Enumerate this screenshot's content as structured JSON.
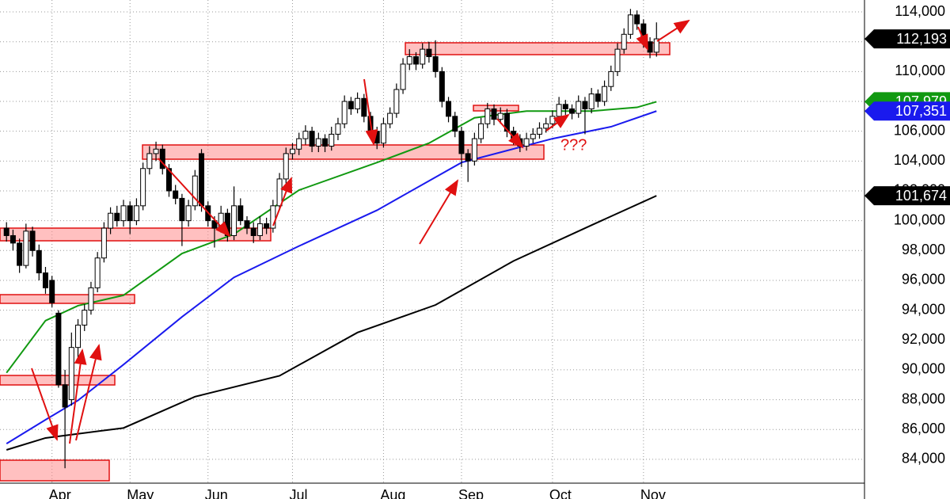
{
  "chart_data": {
    "type": "candlestick",
    "xlim": [
      -1,
      132
    ],
    "ylim": [
      82400,
      114800
    ],
    "xticks": [
      {
        "value": 7,
        "label": "Apr"
      },
      {
        "value": 19,
        "label": "May"
      },
      {
        "value": 31,
        "label": "Jun"
      },
      {
        "value": 44,
        "label": "Jul"
      },
      {
        "value": 58,
        "label": "Aug"
      },
      {
        "value": 70,
        "label": "Sep"
      },
      {
        "value": 84,
        "label": "Oct"
      },
      {
        "value": 98,
        "label": "Nov"
      }
    ],
    "yticks": [
      {
        "value": 84000,
        "label": "84,000"
      },
      {
        "value": 86000,
        "label": "86,000"
      },
      {
        "value": 88000,
        "label": "88,000"
      },
      {
        "value": 90000,
        "label": "90,000"
      },
      {
        "value": 92000,
        "label": "92,000"
      },
      {
        "value": 94000,
        "label": "94,000"
      },
      {
        "value": 96000,
        "label": "96,000"
      },
      {
        "value": 98000,
        "label": "98,000"
      },
      {
        "value": 100000,
        "label": "100,000"
      },
      {
        "value": 102000,
        "label": "102,000"
      },
      {
        "value": 104000,
        "label": "104,000"
      },
      {
        "value": 106000,
        "label": "106,000"
      },
      {
        "value": 108000,
        "label": "108,000"
      },
      {
        "value": 110000,
        "label": "110,000"
      },
      {
        "value": 112000,
        "label": "112,000"
      },
      {
        "value": 114000,
        "label": "114,000"
      }
    ],
    "grid": true,
    "up_color": "#ffffff",
    "down_color": "#000000",
    "ohlc": [
      [
        99500,
        99900,
        98600,
        99000
      ],
      [
        99000,
        99400,
        98000,
        98500
      ],
      [
        98500,
        98800,
        96500,
        97000
      ],
      [
        97000,
        99800,
        96800,
        99300
      ],
      [
        99300,
        99600,
        97600,
        98000
      ],
      [
        98000,
        98400,
        96000,
        96500
      ],
      [
        96500,
        96900,
        95100,
        95500
      ],
      [
        96000,
        96300,
        94200,
        94500
      ],
      [
        93800,
        94000,
        88800,
        89000
      ],
      [
        89000,
        90000,
        83400,
        87500
      ],
      [
        88000,
        92500,
        87600,
        91500
      ],
      [
        91500,
        93400,
        90800,
        93000
      ],
      [
        93000,
        94400,
        92600,
        94000
      ],
      [
        94000,
        95900,
        93700,
        95500
      ],
      [
        95500,
        97900,
        95200,
        97500
      ],
      [
        97500,
        99900,
        97200,
        99500
      ],
      [
        99500,
        100900,
        99100,
        100500
      ],
      [
        100500,
        101000,
        99600,
        100000
      ],
      [
        100000,
        101400,
        99600,
        101000
      ],
      [
        101000,
        101300,
        99100,
        100000
      ],
      [
        100000,
        101500,
        99700,
        101000
      ],
      [
        101000,
        103900,
        100700,
        103500
      ],
      [
        103500,
        105000,
        103100,
        104500
      ],
      [
        104500,
        105300,
        104000,
        104800
      ],
      [
        104800,
        105100,
        103100,
        103500
      ],
      [
        103500,
        103800,
        101600,
        102000
      ],
      [
        102000,
        102400,
        101100,
        101500
      ],
      [
        101500,
        101800,
        98300,
        100000
      ],
      [
        100000,
        101400,
        99600,
        101000
      ],
      [
        101000,
        103400,
        100700,
        103000
      ],
      [
        104500,
        104800,
        100600,
        101000
      ],
      [
        101000,
        101300,
        99600,
        100000
      ],
      [
        100000,
        100300,
        98200,
        99500
      ],
      [
        99500,
        101000,
        99200,
        100500
      ],
      [
        100500,
        100800,
        98600,
        99000
      ],
      [
        99000,
        102300,
        98700,
        101000
      ],
      [
        101000,
        101500,
        99700,
        100000
      ],
      [
        100000,
        100300,
        99100,
        99500
      ],
      [
        99500,
        99900,
        98500,
        99000
      ],
      [
        99000,
        100300,
        98700,
        99800
      ],
      [
        99800,
        100200,
        99100,
        99500
      ],
      [
        99500,
        101400,
        99200,
        101000
      ],
      [
        101000,
        103200,
        100700,
        102800
      ],
      [
        102800,
        104900,
        102500,
        104500
      ],
      [
        104500,
        105200,
        104100,
        104800
      ],
      [
        104800,
        105900,
        104400,
        105500
      ],
      [
        105500,
        106400,
        105100,
        106000
      ],
      [
        106000,
        106300,
        104600,
        105000
      ],
      [
        105000,
        105900,
        104600,
        105500
      ],
      [
        105500,
        105800,
        104600,
        105000
      ],
      [
        105000,
        106300,
        104700,
        105800
      ],
      [
        105800,
        106900,
        105400,
        106500
      ],
      [
        106500,
        108400,
        106200,
        108000
      ],
      [
        108000,
        108300,
        107100,
        107500
      ],
      [
        107500,
        108600,
        107200,
        108200
      ],
      [
        108200,
        108500,
        106600,
        107000
      ],
      [
        107000,
        107300,
        105600,
        106000
      ],
      [
        106000,
        106300,
        104800,
        105200
      ],
      [
        105200,
        106900,
        104900,
        106500
      ],
      [
        106500,
        107600,
        106200,
        107200
      ],
      [
        107200,
        109200,
        106900,
        108800
      ],
      [
        108800,
        110900,
        108500,
        110500
      ],
      [
        110500,
        111500,
        110100,
        111000
      ],
      [
        111000,
        111300,
        110100,
        110500
      ],
      [
        110500,
        111900,
        110200,
        111500
      ],
      [
        111500,
        112000,
        110600,
        111000
      ],
      [
        111000,
        112100,
        109600,
        110000
      ],
      [
        110000,
        110300,
        107600,
        108000
      ],
      [
        108000,
        108300,
        106600,
        107000
      ],
      [
        107000,
        107300,
        105600,
        106000
      ],
      [
        106000,
        106300,
        103600,
        104500
      ],
      [
        104500,
        104800,
        102600,
        104000
      ],
      [
        104000,
        105900,
        103700,
        105500
      ],
      [
        105500,
        106900,
        105200,
        106500
      ],
      [
        106500,
        107900,
        106200,
        107500
      ],
      [
        107500,
        107800,
        106400,
        106800
      ],
      [
        106800,
        107600,
        106500,
        107200
      ],
      [
        107200,
        107500,
        105600,
        106000
      ],
      [
        106000,
        106300,
        105100,
        105500
      ],
      [
        105500,
        105800,
        104600,
        105000
      ],
      [
        105000,
        105900,
        104700,
        105500
      ],
      [
        105500,
        106200,
        105200,
        105800
      ],
      [
        105800,
        106600,
        105500,
        106200
      ],
      [
        106200,
        106900,
        105900,
        106500
      ],
      [
        106500,
        107400,
        106200,
        107000
      ],
      [
        107000,
        108300,
        106700,
        107800
      ],
      [
        107800,
        108100,
        107100,
        107500
      ],
      [
        107500,
        107800,
        106800,
        107200
      ],
      [
        107200,
        108400,
        106900,
        108000
      ],
      [
        108000,
        108300,
        105800,
        107500
      ],
      [
        107500,
        108900,
        107200,
        108500
      ],
      [
        108500,
        108800,
        107600,
        108000
      ],
      [
        108000,
        109400,
        107700,
        109000
      ],
      [
        109000,
        110400,
        108700,
        110000
      ],
      [
        110000,
        111900,
        109700,
        111500
      ],
      [
        111500,
        112900,
        111200,
        112500
      ],
      [
        112500,
        114200,
        112200,
        113800
      ],
      [
        113800,
        114100,
        112800,
        113200
      ],
      [
        113200,
        113500,
        111600,
        112000
      ],
      [
        112000,
        112300,
        110900,
        111300
      ],
      [
        111300,
        113300,
        111000,
        112193
      ]
    ],
    "last_price": {
      "value": 112193,
      "label": "112,193",
      "color": "#000000"
    },
    "series": [
      {
        "color": "#119911",
        "x": [
          0,
          6,
          11,
          18,
          27,
          35,
          45,
          57,
          65,
          72,
          80,
          90,
          97,
          100
        ],
        "values": [
          89800,
          93300,
          94300,
          95000,
          97800,
          99100,
          102050,
          103900,
          105200,
          106900,
          107350,
          107350,
          107600,
          107979
        ],
        "last_label": "107,979"
      },
      {
        "color": "#1a1aee",
        "x": [
          0,
          6,
          11,
          18,
          27,
          35,
          45,
          57,
          70,
          77,
          84,
          93,
          100
        ],
        "values": [
          85050,
          86650,
          87950,
          90350,
          93550,
          96200,
          98300,
          100700,
          103900,
          104700,
          105500,
          106300,
          107351
        ],
        "last_label": "107,351"
      },
      {
        "color": "#000000",
        "x": [
          0,
          6,
          18,
          29,
          42,
          54,
          66,
          78,
          90,
          100
        ],
        "values": [
          84630,
          85430,
          86100,
          88200,
          89600,
          92500,
          94350,
          97300,
          99700,
          101674
        ],
        "last_label": "101,674"
      }
    ],
    "annotations": [
      "???"
    ]
  }
}
